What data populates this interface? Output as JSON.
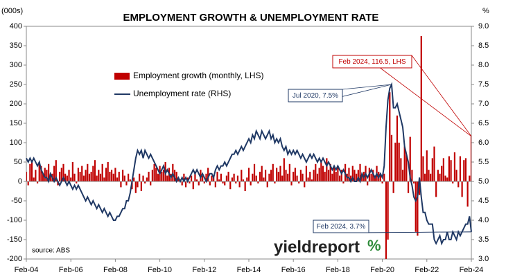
{
  "chart_data": {
    "type": "bar-line",
    "title": "EMPLOYMENT GROWTH & UNEMPLOYMENT RATE",
    "y_label": "(000s)",
    "y2_label": "%",
    "source": "source: ABS",
    "logo": {
      "text": "yieldreport",
      "mark": "%"
    },
    "categories": [
      "Feb-04",
      null,
      null,
      null,
      null,
      null,
      null,
      null,
      null,
      null,
      null,
      null,
      null,
      null,
      null,
      null,
      null,
      null,
      null,
      null,
      null,
      null,
      null,
      null,
      "Feb-06",
      null,
      null,
      null,
      null,
      null,
      null,
      null,
      null,
      null,
      null,
      null,
      null,
      null,
      null,
      null,
      null,
      null,
      null,
      null,
      null,
      null,
      null,
      null,
      "Feb-08",
      null,
      null,
      null,
      null,
      null,
      null,
      null,
      null,
      null,
      null,
      null,
      null,
      null,
      null,
      null,
      null,
      null,
      null,
      null,
      null,
      null,
      null,
      null,
      "Feb-10",
      null,
      null,
      null,
      null,
      null,
      null,
      null,
      null,
      null,
      null,
      null,
      null,
      null,
      null,
      null,
      null,
      null,
      null,
      null,
      null,
      null,
      null,
      null,
      "Feb-12",
      null,
      null,
      null,
      null,
      null,
      null,
      null,
      null,
      null,
      null,
      null,
      null,
      null,
      null,
      null,
      null,
      null,
      null,
      null,
      null,
      null,
      null,
      null,
      "Feb-14",
      null,
      null,
      null,
      null,
      null,
      null,
      null,
      null,
      null,
      null,
      null,
      null,
      null,
      null,
      null,
      null,
      null,
      null,
      null,
      null,
      null,
      null,
      null,
      "Feb-16",
      null,
      null,
      null,
      null,
      null,
      null,
      null,
      null,
      null,
      null,
      null,
      null,
      null,
      null,
      null,
      null,
      null,
      null,
      null,
      null,
      null,
      null,
      null,
      "Feb-18",
      null,
      null,
      null,
      null,
      null,
      null,
      null,
      null,
      null,
      null,
      null,
      null,
      null,
      null,
      null,
      null,
      null,
      null,
      null,
      null,
      null,
      null,
      null,
      "Feb-20",
      null,
      null,
      null,
      null,
      null,
      null,
      null,
      null,
      null,
      null,
      null,
      null,
      null,
      null,
      null,
      null,
      null,
      null,
      null,
      null,
      null,
      null,
      null,
      "Feb-22",
      null,
      null,
      null,
      null,
      null,
      null,
      null,
      null,
      null,
      null,
      null,
      null,
      null,
      null,
      null,
      null,
      null,
      null,
      null,
      null,
      null,
      null,
      null,
      "Feb-24"
    ],
    "series": [
      {
        "name": "Employment growth (monthly, LHS)",
        "kind": "bar",
        "color": "#c00000",
        "values": [
          25,
          -10,
          45,
          55,
          10,
          30,
          -5,
          50,
          40,
          20,
          35,
          30,
          45,
          15,
          20,
          40,
          55,
          -10,
          25,
          35,
          45,
          20,
          15,
          30,
          10,
          50,
          20,
          -5,
          35,
          25,
          40,
          15,
          30,
          45,
          20,
          25,
          40,
          55,
          15,
          30,
          20,
          45,
          10,
          35,
          50,
          25,
          30,
          20,
          35,
          10,
          25,
          -15,
          30,
          15,
          -10,
          20,
          5,
          -20,
          10,
          -30,
          -15,
          20,
          -25,
          15,
          -5,
          10,
          25,
          -10,
          30,
          45,
          35,
          20,
          40,
          25,
          30,
          50,
          15,
          35,
          20,
          45,
          30,
          25,
          10,
          5,
          -10,
          20,
          -15,
          10,
          -5,
          15,
          -20,
          25,
          5,
          -10,
          30,
          15,
          -5,
          20,
          35,
          -10,
          15,
          10,
          -15,
          25,
          5,
          20,
          -5,
          -10,
          15,
          25,
          -20,
          10,
          20,
          -5,
          15,
          -15,
          30,
          5,
          -25,
          10,
          35,
          -10,
          20,
          45,
          15,
          -5,
          25,
          40,
          10,
          30,
          -15,
          20,
          30,
          45,
          -5,
          35,
          25,
          40,
          15,
          60,
          30,
          20,
          45,
          -10,
          25,
          35,
          15,
          -5,
          30,
          20,
          -15,
          40,
          10,
          25,
          5,
          30,
          45,
          20,
          35,
          55,
          40,
          25,
          60,
          30,
          45,
          20,
          35,
          25,
          40,
          15,
          30,
          -5,
          45,
          20,
          35,
          15,
          40,
          30,
          20,
          30,
          45,
          15,
          25,
          40,
          -10,
          35,
          20,
          30,
          15,
          40,
          25,
          20,
          -5,
          20,
          -230,
          -150,
          230,
          120,
          -30,
          100,
          170,
          100,
          60,
          30,
          90,
          70,
          -30,
          115,
          30,
          -5,
          -130,
          -140,
          -35,
          375,
          65,
          20,
          80,
          30,
          20,
          60,
          90,
          -40,
          30,
          20,
          40,
          60,
          15,
          10,
          65,
          55,
          -5,
          75,
          30,
          -15,
          65,
          -40,
          55,
          60,
          -65,
          15,
          116.5
        ]
      },
      {
        "name": "Unemployment rate (RHS)",
        "kind": "line",
        "axis": "y2",
        "color": "#1f3864",
        "values": [
          5.6,
          5.5,
          5.6,
          5.5,
          5.6,
          5.5,
          5.4,
          5.5,
          5.3,
          5.2,
          5.1,
          5.1,
          5.0,
          5.2,
          5.1,
          5.0,
          5.1,
          5.0,
          4.9,
          5.0,
          5.1,
          5.0,
          4.9,
          5.0,
          4.9,
          4.8,
          4.9,
          4.8,
          4.9,
          4.8,
          4.7,
          4.6,
          4.5,
          4.6,
          4.5,
          4.4,
          4.5,
          4.4,
          4.3,
          4.4,
          4.3,
          4.2,
          4.3,
          4.2,
          4.1,
          4.2,
          4.1,
          4.0,
          4.0,
          4.1,
          4.1,
          4.2,
          4.3,
          4.3,
          4.5,
          4.5,
          4.7,
          5.0,
          5.3,
          5.6,
          5.8,
          5.7,
          5.8,
          5.6,
          5.8,
          5.7,
          5.6,
          5.7,
          5.6,
          5.5,
          5.4,
          5.3,
          5.2,
          5.3,
          5.4,
          5.2,
          5.3,
          5.2,
          5.1,
          5.2,
          5.1,
          5.0,
          5.1,
          5.0,
          5.1,
          5.0,
          5.1,
          5.0,
          5.1,
          5.2,
          5.3,
          5.2,
          5.3,
          5.2,
          5.1,
          5.2,
          5.1,
          5.0,
          5.1,
          5.2,
          5.2,
          5.1,
          5.3,
          5.4,
          5.3,
          5.4,
          5.4,
          5.5,
          5.4,
          5.5,
          5.6,
          5.7,
          5.7,
          5.8,
          5.7,
          5.8,
          5.9,
          5.8,
          5.9,
          6.0,
          6.1,
          6.0,
          6.2,
          6.1,
          6.3,
          6.2,
          6.1,
          6.3,
          6.2,
          6.1,
          6.2,
          6.3,
          6.1,
          6.2,
          6.0,
          6.1,
          6.0,
          6.1,
          5.9,
          5.8,
          5.9,
          5.7,
          5.8,
          5.7,
          5.8,
          5.7,
          5.8,
          5.7,
          5.6,
          5.7,
          5.6,
          5.5,
          5.6,
          5.7,
          5.6,
          5.7,
          5.6,
          5.5,
          5.6,
          5.5,
          5.6,
          5.5,
          5.4,
          5.5,
          5.4,
          5.3,
          5.4,
          5.3,
          5.4,
          5.3,
          5.2,
          5.3,
          5.2,
          5.1,
          5.1,
          5.0,
          5.1,
          5.0,
          5.0,
          5.1,
          5.0,
          5.2,
          5.1,
          5.2,
          5.1,
          5.2,
          5.3,
          5.2,
          5.1,
          5.2,
          5.1,
          5.2,
          5.1,
          5.4,
          6.4,
          7.1,
          7.4,
          7.5,
          6.9,
          6.9,
          7.0,
          6.8,
          6.6,
          6.4,
          5.9,
          5.7,
          5.5,
          5.1,
          4.9,
          4.6,
          4.5,
          4.6,
          5.1,
          4.6,
          4.2,
          4.2,
          4.0,
          3.9,
          3.9,
          3.9,
          3.5,
          3.4,
          3.5,
          3.6,
          3.4,
          3.5,
          3.5,
          3.7,
          3.5,
          3.5,
          3.7,
          3.6,
          3.5,
          3.7,
          3.6,
          3.7,
          3.8,
          3.9,
          3.9,
          4.1,
          3.7
        ]
      }
    ],
    "ylim": [
      -200,
      400
    ],
    "yticks": [
      -200,
      -150,
      -100,
      -50,
      0,
      50,
      100,
      150,
      200,
      250,
      300,
      350,
      400
    ],
    "y2lim": [
      3,
      9
    ],
    "y2ticks": [
      {
        "value": 3,
        "label": "3.0"
      },
      3.5,
      {
        "value": 4,
        "label": "4.0"
      },
      4.5,
      {
        "value": 5,
        "label": "5.0"
      },
      5.5,
      {
        "value": 6,
        "label": "6.0"
      },
      6.5,
      {
        "value": 7,
        "label": "7.0"
      },
      7.5,
      {
        "value": 8,
        "label": "8.0"
      },
      8.5,
      {
        "value": 9,
        "label": "9.0"
      }
    ],
    "grid": false,
    "annotations": [
      {
        "text": "Feb 2024, 116.5, LHS",
        "series": 0,
        "index": 240
      },
      {
        "text": "Jul 2020, 7.5%",
        "series": 1,
        "index": 197
      },
      {
        "text": "Feb 2024, 3.7%",
        "series": 1,
        "index": 240
      }
    ]
  }
}
